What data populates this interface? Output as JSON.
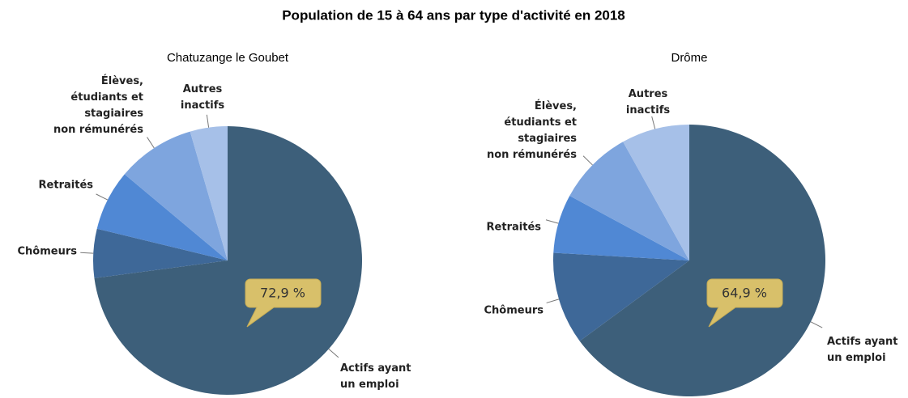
{
  "title": "Population de 15 à 64 ans par type d'activité en 2018",
  "chart_data": [
    {
      "type": "pie",
      "title": "Chatuzange le Goubet",
      "categories": [
        "Actifs ayant\nun emploi",
        "Chômeurs",
        "Retraités",
        "Élèves,\nétudiants et\nstagiaires\nnon rémunérés",
        "Autres\ninactifs"
      ],
      "values": [
        72.9,
        5.9,
        7.3,
        9.4,
        4.5
      ],
      "value_labels": [
        "72,9 %",
        null,
        null,
        null,
        null
      ],
      "colors": [
        "#3d5f7a",
        "#3e6898",
        "#5088d4",
        "#7ea5de",
        "#a6c0e8"
      ]
    },
    {
      "type": "pie",
      "title": "Drôme",
      "categories": [
        "Actifs ayant\nun emploi",
        "Chômeurs",
        "Retraités",
        "Élèves,\nétudiants et\nstagiaires\nnon rémunérés",
        "Autres\ninactifs"
      ],
      "values": [
        64.9,
        11.0,
        7.0,
        9.0,
        8.1
      ],
      "value_labels": [
        "64,9 %",
        null,
        null,
        null,
        null
      ],
      "colors": [
        "#3d5f7a",
        "#3e6898",
        "#5088d4",
        "#7ea5de",
        "#a6c0e8"
      ]
    }
  ]
}
